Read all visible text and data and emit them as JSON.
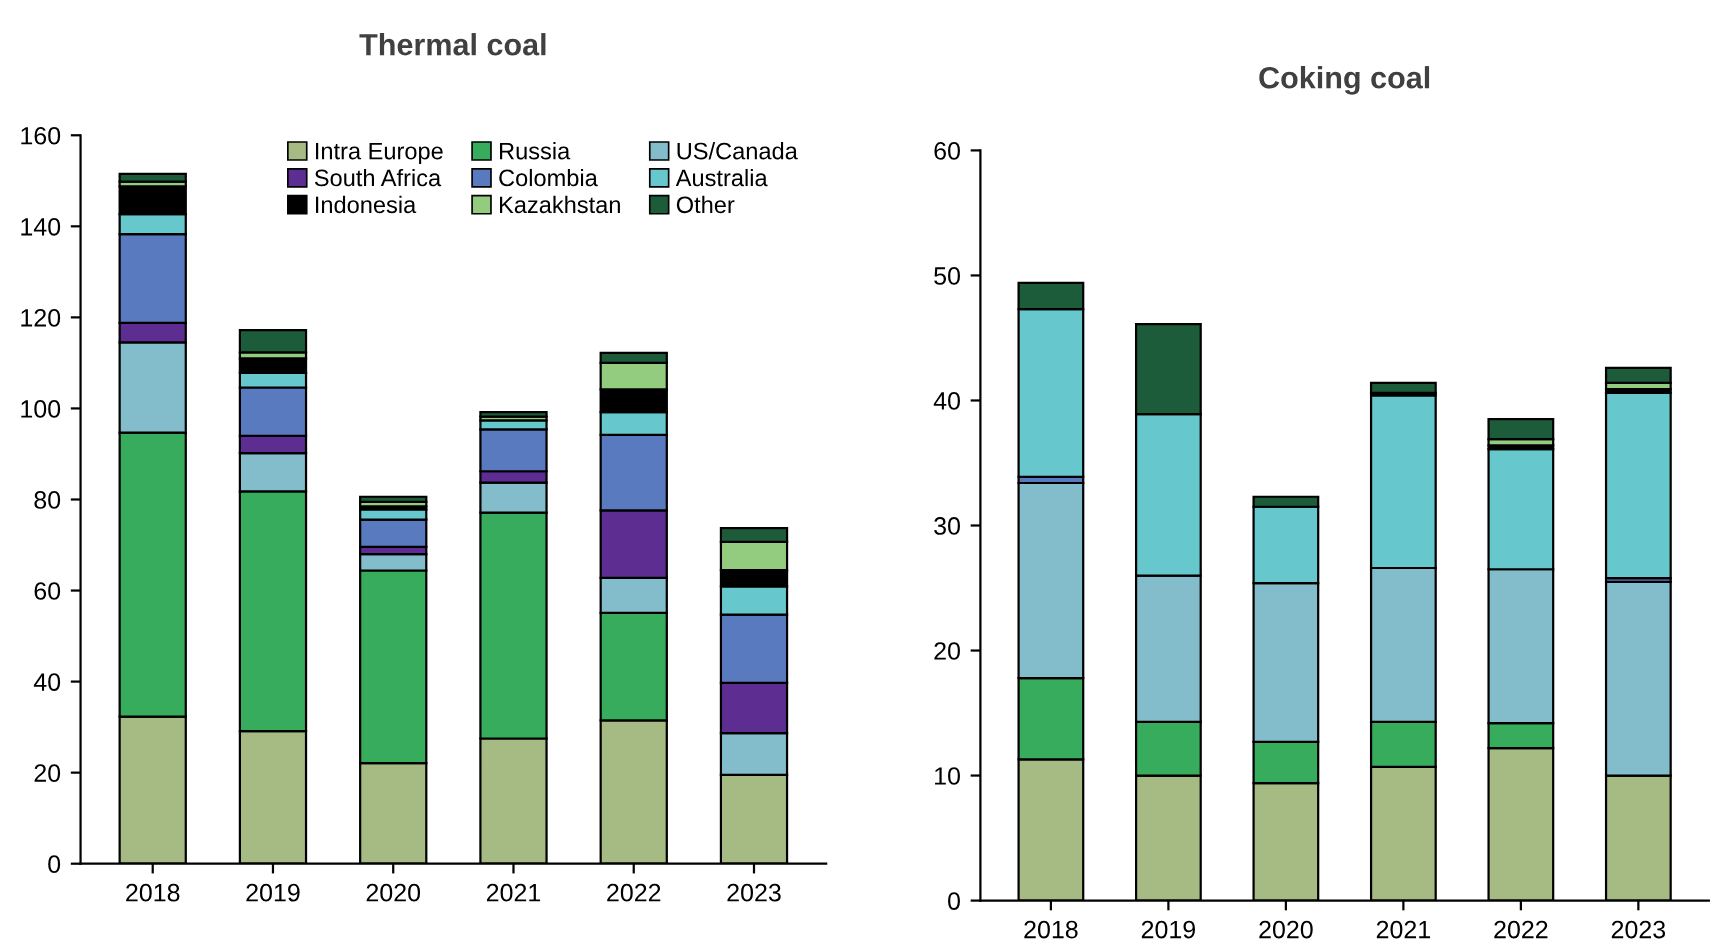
{
  "chart_data": [
    {
      "type": "bar",
      "stacked": true,
      "title": "Thermal coal",
      "categories": [
        "2018",
        "2019",
        "2020",
        "2021",
        "2022",
        "2023"
      ],
      "ylim": [
        0,
        160
      ],
      "yticks": [
        0,
        20,
        40,
        60,
        80,
        100,
        120,
        140,
        160
      ],
      "grid": false,
      "legend": "top",
      "series": [
        {
          "name": "Intra Europe",
          "color": "#a6bb83",
          "values": [
            32.3,
            29.1,
            22.1,
            27.5,
            31.5,
            19.5
          ]
        },
        {
          "name": "Russia",
          "color": "#37ac5c",
          "values": [
            62.4,
            52.7,
            42.3,
            49.6,
            23.6,
            null
          ]
        },
        {
          "name": "US/Canada",
          "color": "#83bccb",
          "values": [
            19.8,
            8.4,
            3.6,
            6.6,
            7.7,
            9.2
          ]
        },
        {
          "name": "South Africa",
          "color": "#5d2d91",
          "values": [
            4.3,
            3.8,
            1.6,
            2.5,
            14.8,
            11.0
          ]
        },
        {
          "name": "Colombia",
          "color": "#5a7abf",
          "values": [
            19.5,
            10.6,
            6.0,
            9.2,
            16.6,
            15.0
          ]
        },
        {
          "name": "Australia",
          "color": "#66c8cc",
          "values": [
            4.4,
            3.2,
            2.2,
            2.0,
            5.0,
            6.2
          ]
        },
        {
          "name": "Indonesia",
          "color": "#000000",
          "values": [
            6.1,
            3.2,
            0.7,
            null,
            5.0,
            3.6
          ]
        },
        {
          "name": "Kazakhstan",
          "color": "#93cc7f",
          "values": [
            1.0,
            1.3,
            1.0,
            0.8,
            5.8,
            6.2
          ]
        },
        {
          "name": "Other",
          "color": "#1d5c3a",
          "values": [
            1.7,
            4.9,
            1.1,
            1.0,
            2.2,
            3.0
          ]
        }
      ]
    },
    {
      "type": "bar",
      "stacked": true,
      "title": "Coking coal",
      "categories": [
        "2018",
        "2019",
        "2020",
        "2021",
        "2022",
        "2023"
      ],
      "ylim": [
        0,
        60
      ],
      "yticks": [
        0,
        10,
        20,
        30,
        40,
        50,
        60
      ],
      "grid": false,
      "legend": false,
      "series": [
        {
          "color": "#a6bb83",
          "values": [
            11.3,
            10.0,
            9.4,
            10.7,
            12.2,
            10.0
          ]
        },
        {
          "color": "#37ac5c",
          "values": [
            6.5,
            4.3,
            3.3,
            3.6,
            2.0,
            0
          ]
        },
        {
          "color": "#83bccb",
          "values": [
            15.6,
            11.7,
            12.7,
            12.3,
            12.3,
            15.5
          ]
        },
        {
          "color": "#5d2d91",
          "values": [
            0,
            0,
            0,
            0,
            0,
            0
          ]
        },
        {
          "color": "#5a7abf",
          "values": [
            0.5,
            0,
            0,
            0,
            0,
            0.3
          ]
        },
        {
          "color": "#66c8cc",
          "values": [
            13.4,
            12.9,
            6.1,
            13.8,
            9.6,
            14.8
          ]
        },
        {
          "color": "#000000",
          "values": [
            null,
            null,
            0,
            0.2,
            0.3,
            0.3
          ]
        },
        {
          "color": "#93cc7f",
          "values": [
            0,
            0,
            0,
            0,
            0.5,
            0.5
          ]
        },
        {
          "color": "#1d5c3a",
          "values": [
            2.1,
            7.2,
            0.8,
            0.8,
            1.6,
            1.2
          ]
        }
      ]
    }
  ]
}
